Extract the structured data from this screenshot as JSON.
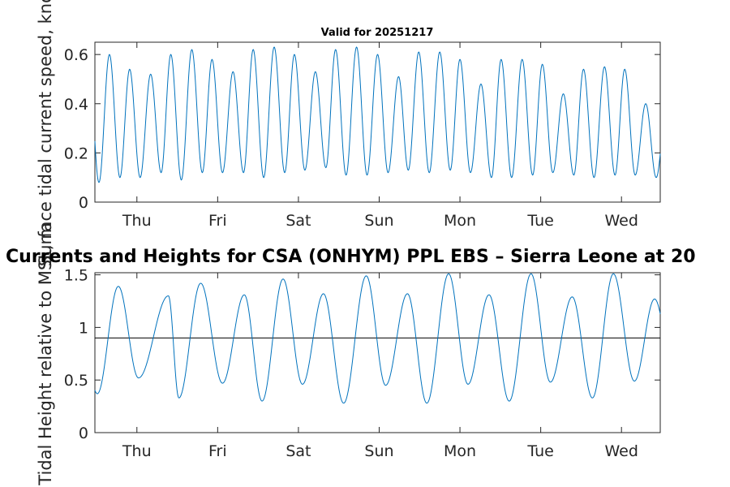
{
  "chart_data": [
    {
      "type": "line",
      "title": "Valid for 20251217",
      "xlabel": "",
      "ylabel": "Surface tidal current speed, knots",
      "xlim": [
        0,
        7
      ],
      "ylim": [
        0,
        0.65
      ],
      "yticks": [
        0,
        0.2,
        0.4,
        0.6
      ],
      "ytick_labels": [
        "0",
        "0.2",
        "0.4",
        "0.6"
      ],
      "xtick_labels": [
        "Thu",
        "Fri",
        "Sat",
        "Sun",
        "Mon",
        "Tue",
        "Wed"
      ],
      "xtick_positions": [
        0.52,
        1.52,
        2.52,
        3.52,
        4.52,
        5.52,
        6.52
      ],
      "series": [
        {
          "name": "current speed",
          "color": "#0072bd",
          "peaks": [
            [
              0.18,
              0.6
            ],
            [
              0.43,
              0.54
            ],
            [
              0.69,
              0.52
            ],
            [
              0.94,
              0.6
            ],
            [
              1.2,
              0.62
            ],
            [
              1.45,
              0.58
            ],
            [
              1.71,
              0.53
            ],
            [
              1.96,
              0.62
            ],
            [
              2.22,
              0.63
            ],
            [
              2.47,
              0.6
            ],
            [
              2.73,
              0.53
            ],
            [
              2.98,
              0.62
            ],
            [
              3.24,
              0.63
            ],
            [
              3.5,
              0.6
            ],
            [
              3.76,
              0.51
            ],
            [
              4.01,
              0.61
            ],
            [
              4.27,
              0.61
            ],
            [
              4.52,
              0.58
            ],
            [
              4.78,
              0.48
            ],
            [
              5.03,
              0.58
            ],
            [
              5.29,
              0.58
            ],
            [
              5.54,
              0.56
            ],
            [
              5.8,
              0.44
            ],
            [
              6.05,
              0.54
            ],
            [
              6.31,
              0.55
            ],
            [
              6.56,
              0.54
            ],
            [
              6.82,
              0.4
            ]
          ],
          "troughs": [
            [
              0.05,
              0.08
            ],
            [
              0.31,
              0.1
            ],
            [
              0.56,
              0.1
            ],
            [
              0.82,
              0.12
            ],
            [
              1.07,
              0.09
            ],
            [
              1.33,
              0.12
            ],
            [
              1.58,
              0.12
            ],
            [
              1.84,
              0.12
            ],
            [
              2.09,
              0.1
            ],
            [
              2.35,
              0.12
            ],
            [
              2.6,
              0.13
            ],
            [
              2.86,
              0.14
            ],
            [
              3.11,
              0.11
            ],
            [
              3.37,
              0.11
            ],
            [
              3.63,
              0.12
            ],
            [
              3.88,
              0.13
            ],
            [
              4.14,
              0.12
            ],
            [
              4.4,
              0.13
            ],
            [
              4.65,
              0.12
            ],
            [
              4.91,
              0.1
            ],
            [
              5.16,
              0.1
            ],
            [
              5.42,
              0.11
            ],
            [
              5.67,
              0.12
            ],
            [
              5.93,
              0.11
            ],
            [
              6.18,
              0.1
            ],
            [
              6.44,
              0.11
            ],
            [
              6.69,
              0.11
            ],
            [
              6.95,
              0.1
            ]
          ]
        }
      ]
    },
    {
      "type": "line",
      "title": "Currents and Heights for CSA (ONHYM) PPL EBS  – Sierra Leone at 20",
      "xlabel": "",
      "ylabel": "Tidal Height relative to MSL, m",
      "xlim": [
        0,
        7
      ],
      "ylim": [
        0,
        1.52
      ],
      "yticks": [
        0,
        0.5,
        1,
        1.5
      ],
      "ytick_labels": [
        "0",
        "0.5",
        "1",
        "1.5"
      ],
      "xtick_labels": [
        "Thu",
        "Fri",
        "Sat",
        "Sun",
        "Mon",
        "Tue",
        "Wed"
      ],
      "xtick_positions": [
        0.52,
        1.52,
        2.52,
        3.52,
        4.52,
        5.52,
        6.52
      ],
      "reference_line": 0.9,
      "series": [
        {
          "name": "tidal height",
          "color": "#0072bd",
          "peaks": [
            [
              0.29,
              1.39
            ],
            [
              0.91,
              1.3
            ],
            [
              1.31,
              1.42
            ],
            [
              1.85,
              1.31
            ],
            [
              2.33,
              1.46
            ],
            [
              2.83,
              1.32
            ],
            [
              3.36,
              1.49
            ],
            [
              3.87,
              1.32
            ],
            [
              4.38,
              1.51
            ],
            [
              4.88,
              1.31
            ],
            [
              5.4,
              1.51
            ],
            [
              5.91,
              1.29
            ],
            [
              6.42,
              1.51
            ],
            [
              6.93,
              1.27
            ]
          ],
          "troughs": [
            [
              0.03,
              0.37
            ],
            [
              0.54,
              0.52
            ],
            [
              1.04,
              0.33
            ],
            [
              1.58,
              0.47
            ],
            [
              2.07,
              0.3
            ],
            [
              2.57,
              0.46
            ],
            [
              3.08,
              0.28
            ],
            [
              3.6,
              0.45
            ],
            [
              4.11,
              0.28
            ],
            [
              4.62,
              0.46
            ],
            [
              5.13,
              0.3
            ],
            [
              5.64,
              0.48
            ],
            [
              6.16,
              0.33
            ],
            [
              6.68,
              0.49
            ]
          ]
        }
      ]
    }
  ]
}
